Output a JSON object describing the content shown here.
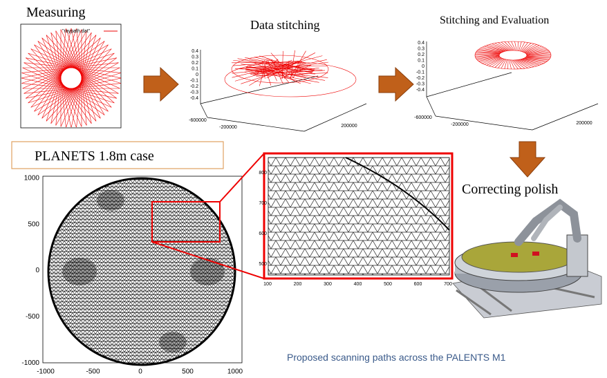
{
  "steps": [
    {
      "label": "Measuring"
    },
    {
      "label": "Data stitching"
    },
    {
      "label": "Stitching and Evaluation"
    },
    {
      "label": "Correcting polish"
    }
  ],
  "measuring_plot": {
    "legend": "\"raypath.dat\""
  },
  "data_stitching_plot": {
    "zticks": [
      "0.4",
      "0.3",
      "0.2",
      "0.1",
      "0",
      "-0.1",
      "-0.2",
      "-0.3",
      "-0.4"
    ],
    "xticks": [
      "-600000",
      "-200000",
      "200000"
    ]
  },
  "evaluation_plot": {
    "zticks": [
      "0.4",
      "0.3",
      "0.2",
      "0.1",
      "0",
      "-0.1",
      "-0.2",
      "-0.3",
      "-0.4"
    ],
    "xticks": [
      "-600000",
      "-200000",
      "200000"
    ]
  },
  "case_label": "PLANETS 1.8m case",
  "main_plot": {
    "xticks": [
      "-1000",
      "-500",
      "0",
      "500",
      "1000"
    ],
    "yticks": [
      "1000",
      "500",
      "0",
      "-500",
      "-1000"
    ]
  },
  "zoom_plot": {
    "xticks": [
      "100",
      "200",
      "300",
      "400",
      "500",
      "600",
      "700"
    ],
    "yticks": [
      "800",
      "700",
      "600",
      "500"
    ]
  },
  "caption": "Proposed scanning paths across the PALENTS M1"
}
